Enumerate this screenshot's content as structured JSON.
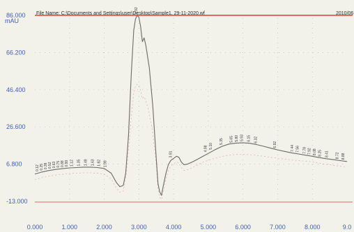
{
  "header": {
    "file_name": "File Name: C:\\Documents and Settings\\user\\Desktop\\Sample1, 29-11-2020.wf",
    "date": "2010/06"
  },
  "colors": {
    "background": "#f2f1ea",
    "trace": "#6b6b62",
    "axis_text": "#3f5fae",
    "top_line": "#e23b3b",
    "baseline": "#e07a7a",
    "grid": "#b8b8b0"
  },
  "chart_data": {
    "type": "line",
    "title": "",
    "xlabel": "",
    "ylabel": "mAU",
    "xlim": [
      0.0,
      9.0
    ],
    "ylim": [
      -13.0,
      86.0
    ],
    "grid": true,
    "y_ticks": [
      "86.000",
      "66.200",
      "46.400",
      "26.600",
      "6.800",
      "-13.000"
    ],
    "x_ticks": [
      "0.000",
      "1.000",
      "2.000",
      "3.000",
      "4.000",
      "5.000",
      "6.000",
      "7.000",
      "8.000",
      "9.0"
    ],
    "y_tick_values": [
      86.0,
      66.2,
      46.4,
      26.6,
      6.8,
      -13.0
    ],
    "x_tick_values": [
      0,
      1,
      2,
      3,
      4,
      5,
      6,
      7,
      8,
      9
    ],
    "series": [
      {
        "x": [
          0.0,
          0.2,
          0.4,
          0.6,
          0.8,
          1.0,
          1.2,
          1.4,
          1.6,
          1.8,
          2.0,
          2.2,
          2.35,
          2.45,
          2.55,
          2.62,
          2.7,
          2.78,
          2.85,
          2.9,
          2.95,
          3.0,
          3.05,
          3.1,
          3.15,
          3.2,
          3.3,
          3.4,
          3.5,
          3.55,
          3.6,
          3.65,
          3.7,
          3.78,
          3.85,
          3.92,
          4.0,
          4.08,
          4.15,
          4.22,
          4.3,
          4.4,
          4.6,
          4.8,
          5.0,
          5.2,
          5.4,
          5.6,
          5.8,
          6.0,
          6.2,
          6.4,
          6.6,
          6.8,
          7.0,
          7.2,
          7.4,
          7.6,
          7.8,
          8.0,
          8.2,
          8.4,
          8.6,
          8.8,
          9.0
        ],
        "y": [
          1.5,
          2.6,
          3.4,
          4.0,
          4.4,
          4.8,
          5.0,
          5.2,
          5.2,
          5.0,
          4.5,
          2.0,
          -3.0,
          -5.2,
          -4.5,
          2.0,
          22.0,
          55.0,
          78.0,
          84.0,
          86.0,
          85.0,
          80.0,
          72.0,
          74.0,
          70.0,
          58.0,
          38.0,
          10.0,
          -3.5,
          -8.0,
          -9.8,
          -5.0,
          2.0,
          6.5,
          8.8,
          9.8,
          11.0,
          10.5,
          8.0,
          6.5,
          6.8,
          8.5,
          10.5,
          12.5,
          14.5,
          16.3,
          17.5,
          18.0,
          18.2,
          17.9,
          17.2,
          16.3,
          15.3,
          14.4,
          13.6,
          12.8,
          12.2,
          11.6,
          11.0,
          10.3,
          9.7,
          9.2,
          8.7,
          8.2
        ]
      }
    ],
    "peak_labels": [
      {
        "x": 0.1,
        "y": 2.2,
        "text": "0.12"
      },
      {
        "x": 0.22,
        "y": 2.7,
        "text": "0.25"
      },
      {
        "x": 0.34,
        "y": 3.2,
        "text": "0.39"
      },
      {
        "x": 0.46,
        "y": 3.6,
        "text": "0.52"
      },
      {
        "x": 0.58,
        "y": 3.9,
        "text": "0.63"
      },
      {
        "x": 0.7,
        "y": 4.2,
        "text": "0.75"
      },
      {
        "x": 0.82,
        "y": 4.4,
        "text": "0.88"
      },
      {
        "x": 0.94,
        "y": 4.6,
        "text": "0.99"
      },
      {
        "x": 1.1,
        "y": 4.8,
        "text": "1.12"
      },
      {
        "x": 1.3,
        "y": 5.0,
        "text": "1.35"
      },
      {
        "x": 1.5,
        "y": 5.1,
        "text": "1.49"
      },
      {
        "x": 1.7,
        "y": 5.1,
        "text": "1.63"
      },
      {
        "x": 1.88,
        "y": 4.9,
        "text": "1.82"
      },
      {
        "x": 2.06,
        "y": 4.4,
        "text": "1.99"
      },
      {
        "x": 2.95,
        "y": 86.0,
        "text": "2.92"
      },
      {
        "x": 3.95,
        "y": 9.5,
        "text": "3.91"
      },
      {
        "x": 4.95,
        "y": 12.5,
        "text": "4.98"
      },
      {
        "x": 5.1,
        "y": 13.8,
        "text": "5.10"
      },
      {
        "x": 5.4,
        "y": 16.3,
        "text": "5.35"
      },
      {
        "x": 5.7,
        "y": 17.5,
        "text": "5.65"
      },
      {
        "x": 5.85,
        "y": 17.9,
        "text": "5.80"
      },
      {
        "x": 6.0,
        "y": 18.2,
        "text": "5.93"
      },
      {
        "x": 6.2,
        "y": 17.9,
        "text": "6.15"
      },
      {
        "x": 6.4,
        "y": 17.2,
        "text": "6.32"
      },
      {
        "x": 6.95,
        "y": 14.6,
        "text": "6.92"
      },
      {
        "x": 7.45,
        "y": 12.7,
        "text": "7.44"
      },
      {
        "x": 7.6,
        "y": 12.3,
        "text": "7.56"
      },
      {
        "x": 7.8,
        "y": 11.6,
        "text": "7.78"
      },
      {
        "x": 7.95,
        "y": 11.1,
        "text": "7.92"
      },
      {
        "x": 8.1,
        "y": 10.7,
        "text": "8.08"
      },
      {
        "x": 8.25,
        "y": 10.1,
        "text": "8.25"
      },
      {
        "x": 8.45,
        "y": 9.6,
        "text": "8.41"
      },
      {
        "x": 8.75,
        "y": 8.8,
        "text": "8.72"
      },
      {
        "x": 8.92,
        "y": 8.4,
        "text": "8.88"
      }
    ]
  }
}
